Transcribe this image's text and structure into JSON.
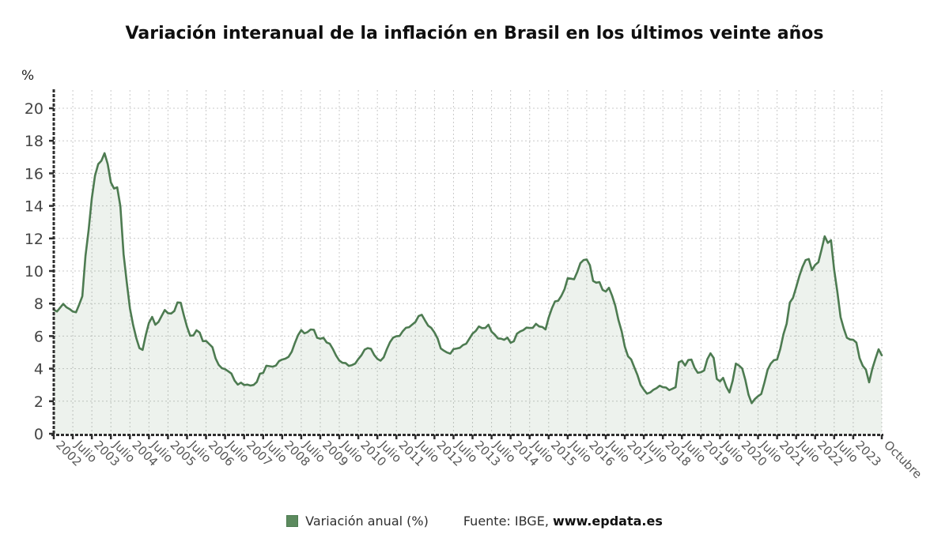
{
  "title": "Variación interanual de la inflación en Brasil en los últimos veinte años",
  "legend": {
    "series_label": "Variación anual (%)"
  },
  "source": {
    "prefix": "Fuente: IBGE, ",
    "link_text": "www.epdata.es"
  },
  "colors": {
    "line": "#4d7b51",
    "area_fill": "rgba(77,123,81,0.10)",
    "grid": "#c9c9c9",
    "axis": "#2e2e2e",
    "legend_swatch": "#5c8a5e"
  },
  "chart_data": {
    "type": "area",
    "title": "Variación interanual de la inflación en Brasil en los últimos veinte años",
    "series_name": "Variación anual (%)",
    "xlabel": "",
    "ylabel": "%",
    "ylim": [
      0,
      20
    ],
    "grid": true,
    "legend_position": "bottom-center",
    "x_unit": "month",
    "x_start": "2002-01",
    "x_end": "2023-10",
    "y_ticks": [
      0,
      2,
      4,
      6,
      8,
      10,
      12,
      14,
      16,
      18,
      20
    ],
    "x_ticks": [
      {
        "i": 0,
        "label": "2002"
      },
      {
        "i": 6,
        "label": "Julio"
      },
      {
        "i": 12,
        "label": "2003"
      },
      {
        "i": 18,
        "label": "Julio"
      },
      {
        "i": 24,
        "label": "2004"
      },
      {
        "i": 30,
        "label": "Julio"
      },
      {
        "i": 36,
        "label": "2005"
      },
      {
        "i": 42,
        "label": "Julio"
      },
      {
        "i": 48,
        "label": "2006"
      },
      {
        "i": 54,
        "label": "Julio"
      },
      {
        "i": 60,
        "label": "2007"
      },
      {
        "i": 66,
        "label": "Julio"
      },
      {
        "i": 72,
        "label": "2008"
      },
      {
        "i": 78,
        "label": "Julio"
      },
      {
        "i": 84,
        "label": "2009"
      },
      {
        "i": 90,
        "label": "Julio"
      },
      {
        "i": 96,
        "label": "2010"
      },
      {
        "i": 102,
        "label": "Julio"
      },
      {
        "i": 108,
        "label": "2011"
      },
      {
        "i": 114,
        "label": "Julio"
      },
      {
        "i": 120,
        "label": "2012"
      },
      {
        "i": 126,
        "label": "Julio"
      },
      {
        "i": 132,
        "label": "2013"
      },
      {
        "i": 138,
        "label": "Julio"
      },
      {
        "i": 144,
        "label": "2014"
      },
      {
        "i": 150,
        "label": "Julio"
      },
      {
        "i": 156,
        "label": "2015"
      },
      {
        "i": 162,
        "label": "Julio"
      },
      {
        "i": 168,
        "label": "2016"
      },
      {
        "i": 174,
        "label": "Julio"
      },
      {
        "i": 180,
        "label": "2017"
      },
      {
        "i": 186,
        "label": "Julio"
      },
      {
        "i": 192,
        "label": "2018"
      },
      {
        "i": 198,
        "label": "Julio"
      },
      {
        "i": 204,
        "label": "2019"
      },
      {
        "i": 210,
        "label": "Julio"
      },
      {
        "i": 216,
        "label": "2020"
      },
      {
        "i": 222,
        "label": "Julio"
      },
      {
        "i": 228,
        "label": "2021"
      },
      {
        "i": 234,
        "label": "Julio"
      },
      {
        "i": 240,
        "label": "2022"
      },
      {
        "i": 246,
        "label": "Julio"
      },
      {
        "i": 252,
        "label": "2023"
      },
      {
        "i": 261,
        "label": "Octubre"
      }
    ],
    "values": [
      7.62,
      7.51,
      7.75,
      7.98,
      7.77,
      7.66,
      7.51,
      7.46,
      7.93,
      8.45,
      10.93,
      12.53,
      14.47,
      15.85,
      16.57,
      16.77,
      17.24,
      16.57,
      15.44,
      15.07,
      15.14,
      13.98,
      11.02,
      9.3,
      7.71,
      6.69,
      5.89,
      5.26,
      5.15,
      6.06,
      6.81,
      7.18,
      6.7,
      6.87,
      7.24,
      7.6,
      7.41,
      7.39,
      7.54,
      8.07,
      8.05,
      7.27,
      6.57,
      6.02,
      6.04,
      6.36,
      6.22,
      5.69,
      5.7,
      5.51,
      5.32,
      4.63,
      4.23,
      4.03,
      3.97,
      3.84,
      3.7,
      3.26,
      3.02,
      3.14,
      2.99,
      3.02,
      2.96,
      3.0,
      3.18,
      3.69,
      3.74,
      4.18,
      4.15,
      4.12,
      4.19,
      4.46,
      4.56,
      4.61,
      4.73,
      5.04,
      5.58,
      6.06,
      6.37,
      6.17,
      6.25,
      6.41,
      6.39,
      5.9,
      5.84,
      5.9,
      5.61,
      5.53,
      5.2,
      4.8,
      4.5,
      4.36,
      4.34,
      4.17,
      4.22,
      4.31,
      4.59,
      4.83,
      5.17,
      5.26,
      5.22,
      4.84,
      4.6,
      4.49,
      4.7,
      5.2,
      5.63,
      5.91,
      5.99,
      6.01,
      6.3,
      6.51,
      6.55,
      6.71,
      6.87,
      7.23,
      7.31,
      6.97,
      6.64,
      6.5,
      6.22,
      5.85,
      5.24,
      5.1,
      4.99,
      4.92,
      5.2,
      5.24,
      5.28,
      5.45,
      5.53,
      5.84,
      6.15,
      6.31,
      6.59,
      6.49,
      6.5,
      6.7,
      6.27,
      6.09,
      5.86,
      5.84,
      5.77,
      5.91,
      5.59,
      5.68,
      6.15,
      6.28,
      6.37,
      6.52,
      6.5,
      6.51,
      6.75,
      6.59,
      6.56,
      6.41,
      7.14,
      7.7,
      8.13,
      8.17,
      8.47,
      8.89,
      9.56,
      9.53,
      9.49,
      9.93,
      10.48,
      10.67,
      10.71,
      10.36,
      9.39,
      9.28,
      9.32,
      8.84,
      8.74,
      8.97,
      8.48,
      7.87,
      6.99,
      6.29,
      5.35,
      4.76,
      4.57,
      4.08,
      3.6,
      3.0,
      2.71,
      2.46,
      2.54,
      2.7,
      2.8,
      2.95,
      2.86,
      2.84,
      2.68,
      2.76,
      2.86,
      4.39,
      4.48,
      4.19,
      4.53,
      4.56,
      4.05,
      3.75,
      3.78,
      3.89,
      4.58,
      4.94,
      4.66,
      3.37,
      3.22,
      3.43,
      2.89,
      2.54,
      3.27,
      4.31,
      4.19,
      4.01,
      3.3,
      2.4,
      1.88,
      2.13,
      2.31,
      2.44,
      3.14,
      3.92,
      4.31,
      4.52,
      4.56,
      5.2,
      6.1,
      6.76,
      8.06,
      8.35,
      8.99,
      9.68,
      10.25,
      10.67,
      10.74,
      10.06,
      10.38,
      10.54,
      11.3,
      12.13,
      11.73,
      11.89,
      10.07,
      8.73,
      7.17,
      6.47,
      5.9,
      5.79,
      5.77,
      5.6,
      4.65,
      4.18,
      3.94,
      3.16,
      3.99,
      4.61,
      5.19,
      4.82
    ]
  }
}
